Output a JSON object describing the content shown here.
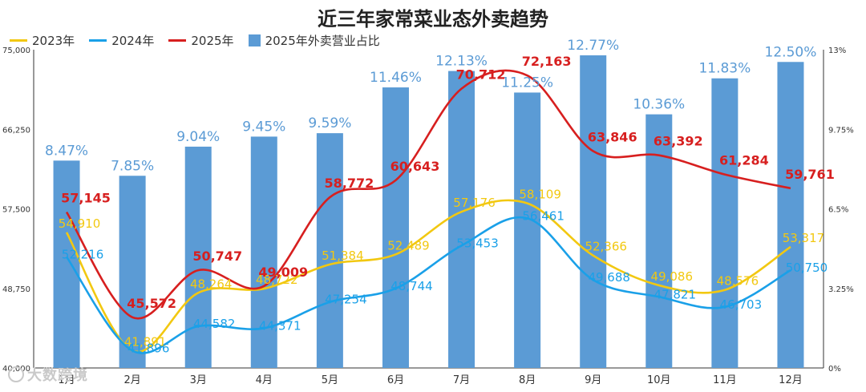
{
  "chart_data": {
    "type": "bar+line",
    "title": "近三年家常菜业态外卖趋势",
    "categories": [
      "1月",
      "2月",
      "3月",
      "4月",
      "5月",
      "6月",
      "7月",
      "8月",
      "9月",
      "10月",
      "11月",
      "12月"
    ],
    "y_left": {
      "min": 40000,
      "max": 75000,
      "ticks": [
        "40,000",
        "48,750",
        "57,500",
        "66,250",
        "75,000"
      ]
    },
    "y_right": {
      "min": 0,
      "max": 13,
      "ticks": [
        "0%",
        "3.25%",
        "6.5%",
        "9.75%",
        "13%"
      ]
    },
    "bars": {
      "name": "2025年外卖营业占比",
      "color": "#5b9bd5",
      "label_color": "#5b9bd5",
      "values": [
        8.47,
        7.85,
        9.04,
        9.45,
        9.59,
        11.46,
        12.13,
        11.25,
        12.77,
        10.36,
        11.83,
        12.5
      ],
      "labels": [
        "8.47%",
        "7.85%",
        "9.04%",
        "9.45%",
        "9.59%",
        "11.46%",
        "12.13%",
        "11.25%",
        "12.77%",
        "10.36%",
        "11.83%",
        "12.50%"
      ]
    },
    "series": [
      {
        "name": "2023年",
        "color": "#f2c811",
        "label_color": "#f2c811",
        "values": [
          54910,
          41891,
          48264,
          48722,
          51384,
          52489,
          57176,
          58109,
          52366,
          49086,
          48576,
          53317
        ],
        "labels": [
          "54,910",
          "41,891",
          "48,264",
          "48,722",
          "51,384",
          "52,489",
          "57,176",
          "58,109",
          "52,366",
          "49,086",
          "48,576",
          "53,317"
        ]
      },
      {
        "name": "2024年",
        "color": "#1aa0e8",
        "label_color": "#1aa0e8",
        "values": [
          52216,
          41896,
          44582,
          44371,
          47254,
          48744,
          53453,
          56461,
          49688,
          47821,
          46703,
          50750
        ],
        "labels": [
          "52,216",
          "41,896",
          "44,582",
          "44,371",
          "47,254",
          "48,744",
          "53,453",
          "56,461",
          "49,688",
          "47,821",
          "46,703",
          "50,750"
        ]
      },
      {
        "name": "2025年",
        "color": "#d71f1f",
        "label_color": "#d71f1f",
        "values": [
          57145,
          45572,
          50747,
          49009,
          58772,
          60643,
          70712,
          72163,
          63846,
          63392,
          61284,
          59761
        ],
        "labels": [
          "57,145",
          "45,572",
          "50,747",
          "49,009",
          "58,772",
          "60,643",
          "70,712",
          "72,163",
          "63,846",
          "63,392",
          "61,284",
          "59,761"
        ]
      }
    ],
    "legend_position": "top-left",
    "grid": false
  },
  "watermark": "大数跨境"
}
